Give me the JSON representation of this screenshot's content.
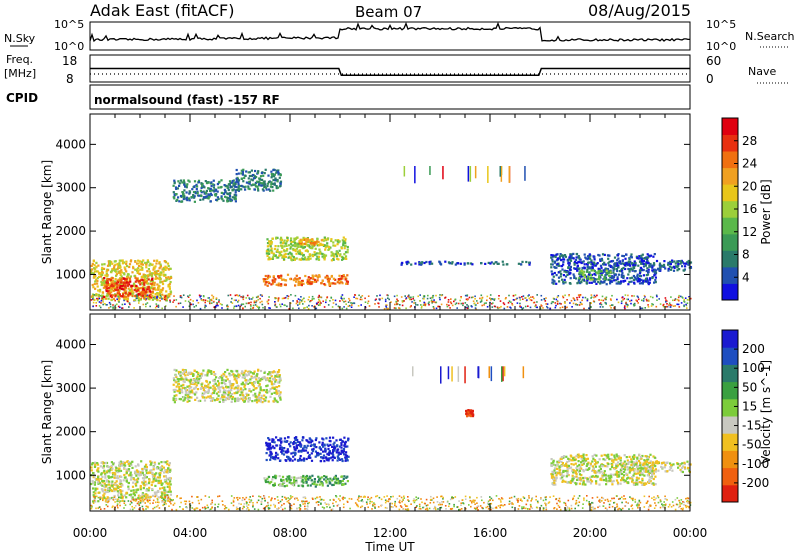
{
  "header": {
    "site": "Adak East (fitACF)",
    "beam": "Beam 07",
    "date": "08/Aug/2015"
  },
  "panels": {
    "nsky": {
      "label": "N.Sky",
      "top_tick": "10^5",
      "bottom_tick": "10^0",
      "right_label": "N.Search",
      "right_top": "10^5",
      "right_bottom": "10^0"
    },
    "freq": {
      "label": "Freq.",
      "unit": "[MHz]",
      "top_tick": "18",
      "bottom_tick": "8",
      "right_label": "Nave",
      "right_top": "60",
      "right_bottom": "0"
    },
    "cpid": {
      "label": "CPID",
      "text": "normalsound (fast) -157 RF"
    }
  },
  "axes": {
    "ylabel": "Slant Range [km]",
    "yticks": [
      "1000",
      "2000",
      "3000",
      "4000"
    ],
    "xticks": [
      "00:00",
      "04:00",
      "08:00",
      "12:00",
      "16:00",
      "20:00",
      "00:00"
    ],
    "xlabel": "Time UT"
  },
  "colorbars": {
    "power": {
      "label": "Power [dB]",
      "ticks": [
        "4",
        "8",
        "12",
        "16",
        "20",
        "24",
        "28"
      ],
      "colors": [
        "#1010e0",
        "#2050b0",
        "#2a7a6a",
        "#3a9a55",
        "#5ab84a",
        "#9ccf3a",
        "#e8c61a",
        "#f0a020",
        "#f07010",
        "#e83010",
        "#e00010"
      ]
    },
    "velocity": {
      "label": "Velocity [m s^-1]",
      "ticks": [
        "200",
        "100",
        "50",
        "15",
        "-15",
        "-50",
        "-100",
        "-200"
      ],
      "colors": [
        "#1a1ad0",
        "#1e4ec0",
        "#2a7a6a",
        "#3aa040",
        "#7ccc3a",
        "#c8c8c0",
        "#f0c020",
        "#f09010",
        "#f06010",
        "#e02010"
      ]
    }
  },
  "chart_data": [
    {
      "type": "line",
      "title": "N.Sky",
      "x_range": [
        0,
        24
      ],
      "series": [
        {
          "name": "N.Sky",
          "x": [
            0,
            4,
            8,
            9.9,
            10.1,
            14,
            17.9,
            18.1,
            22,
            24
          ],
          "y": [
            0.35,
            0.38,
            0.42,
            0.45,
            0.75,
            0.8,
            0.72,
            0.4,
            0.35,
            0.35
          ]
        }
      ]
    },
    {
      "type": "line",
      "title": "Freq.",
      "x_range": [
        0,
        24
      ],
      "ylim": [
        8,
        18
      ],
      "series": [
        {
          "name": "Freq.",
          "x": [
            0,
            9.95,
            10.05,
            17.95,
            18.05,
            24
          ],
          "y": [
            13,
            13,
            10.5,
            10.5,
            13,
            13
          ]
        }
      ]
    },
    {
      "type": "heatmap",
      "title": "Power [dB]",
      "xlabel": "Time UT",
      "ylabel": "Slant Range [km]",
      "x_range": [
        0,
        24
      ],
      "ylim": [
        180,
        4700
      ],
      "regions": [
        {
          "t0": 0.0,
          "t1": 3.2,
          "r0": 420,
          "r1": 1350,
          "level": 6
        },
        {
          "t0": 0.5,
          "t1": 2.5,
          "r0": 500,
          "r1": 950,
          "level": 9
        },
        {
          "t0": 3.3,
          "t1": 5.8,
          "r0": 2700,
          "r1": 3200,
          "level": 2
        },
        {
          "t0": 5.8,
          "t1": 7.6,
          "r0": 2950,
          "r1": 3450,
          "level": 2
        },
        {
          "t0": 6.9,
          "t1": 10.3,
          "r0": 760,
          "r1": 1020,
          "level": 8
        },
        {
          "t0": 7.0,
          "t1": 10.3,
          "r0": 1350,
          "r1": 1880,
          "level": 5
        },
        {
          "t0": 8.3,
          "t1": 9.3,
          "r0": 1700,
          "r1": 1850,
          "level": 7
        },
        {
          "t0": 12.4,
          "t1": 17.6,
          "r0": 1250,
          "r1": 1320,
          "level": 1
        },
        {
          "t0": 18.4,
          "t1": 22.6,
          "r0": 800,
          "r1": 1500,
          "level": 1
        },
        {
          "t0": 19.5,
          "t1": 20.8,
          "r0": 900,
          "r1": 1120,
          "level": 4
        },
        {
          "t0": 21.5,
          "t1": 24.0,
          "r0": 1100,
          "r1": 1350,
          "level": 1
        }
      ]
    },
    {
      "type": "heatmap",
      "title": "Velocity [m s^-1]",
      "xlabel": "Time UT",
      "ylabel": "Slant Range [km]",
      "x_range": [
        0,
        24
      ],
      "ylim": [
        180,
        4700
      ],
      "regions": [
        {
          "t0": 0.0,
          "t1": 3.2,
          "r0": 420,
          "r1": 1350,
          "level": 5
        },
        {
          "t0": 3.3,
          "t1": 7.6,
          "r0": 2700,
          "r1": 3450,
          "level": 5
        },
        {
          "t0": 7.0,
          "t1": 10.3,
          "r0": 1350,
          "r1": 1900,
          "level": 0
        },
        {
          "t0": 6.9,
          "t1": 8.5,
          "r0": 760,
          "r1": 1020,
          "level": 4
        },
        {
          "t0": 8.5,
          "t1": 10.3,
          "r0": 760,
          "r1": 1020,
          "level": 3
        },
        {
          "t0": 15.0,
          "t1": 15.3,
          "r0": 2380,
          "r1": 2520,
          "level": 9
        },
        {
          "t0": 18.4,
          "t1": 22.6,
          "r0": 800,
          "r1": 1500,
          "level": 5
        },
        {
          "t0": 21.5,
          "t1": 24.0,
          "r0": 1100,
          "r1": 1350,
          "level": 5
        }
      ]
    }
  ]
}
